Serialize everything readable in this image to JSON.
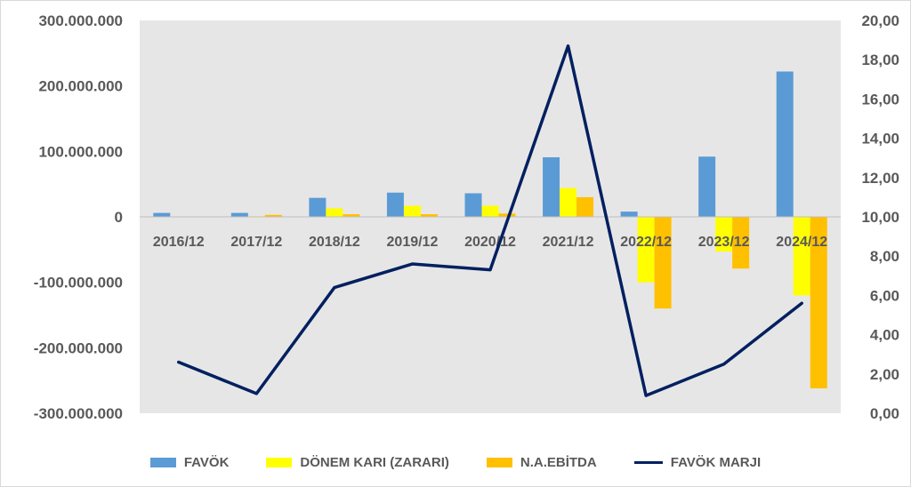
{
  "chart_data": {
    "type": "bar",
    "categories": [
      "2016/12",
      "2017/12",
      "2018/12",
      "2019/12",
      "2020/12",
      "2021/12",
      "2022/12",
      "2023/12",
      "2024/12"
    ],
    "series": [
      {
        "name": "FAVÖK",
        "kind": "bar",
        "axis": "left",
        "color": "#5b9bd5",
        "values": [
          6000000,
          6000000,
          29000000,
          37000000,
          36000000,
          91000000,
          8000000,
          92000000,
          222000000
        ]
      },
      {
        "name": "DÖNEM KARI (ZARARI)",
        "kind": "bar",
        "axis": "left",
        "color": "#ffff00",
        "values": [
          0,
          1000000,
          13000000,
          17000000,
          17000000,
          44000000,
          -100000000,
          -53000000,
          -120000000
        ]
      },
      {
        "name": "N.A.EBİTDA",
        "kind": "bar",
        "axis": "left",
        "color": "#ffc000",
        "values": [
          0,
          3000000,
          4000000,
          4000000,
          5000000,
          30000000,
          -140000000,
          -79000000,
          -262000000
        ]
      },
      {
        "name": "FAVÖK MARJI",
        "kind": "line",
        "axis": "right",
        "color": "#002060",
        "values": [
          2.6,
          1.0,
          6.4,
          7.6,
          7.3,
          18.7,
          0.9,
          2.5,
          5.6
        ]
      }
    ],
    "ylim_left": [
      -300000000,
      300000000
    ],
    "yticks_left": [
      "300.000.000",
      "200.000.000",
      "100.000.000",
      "0",
      "-100.000.000",
      "-200.000.000",
      "-300.000.000"
    ],
    "ylim_right": [
      0,
      20
    ],
    "yticks_right": [
      "20,00",
      "18,00",
      "16,00",
      "14,00",
      "12,00",
      "10,00",
      "8,00",
      "6,00",
      "4,00",
      "2,00",
      "0,00"
    ],
    "legend_position": "bottom",
    "grid": false,
    "plot_background": "#e7e6e6"
  }
}
